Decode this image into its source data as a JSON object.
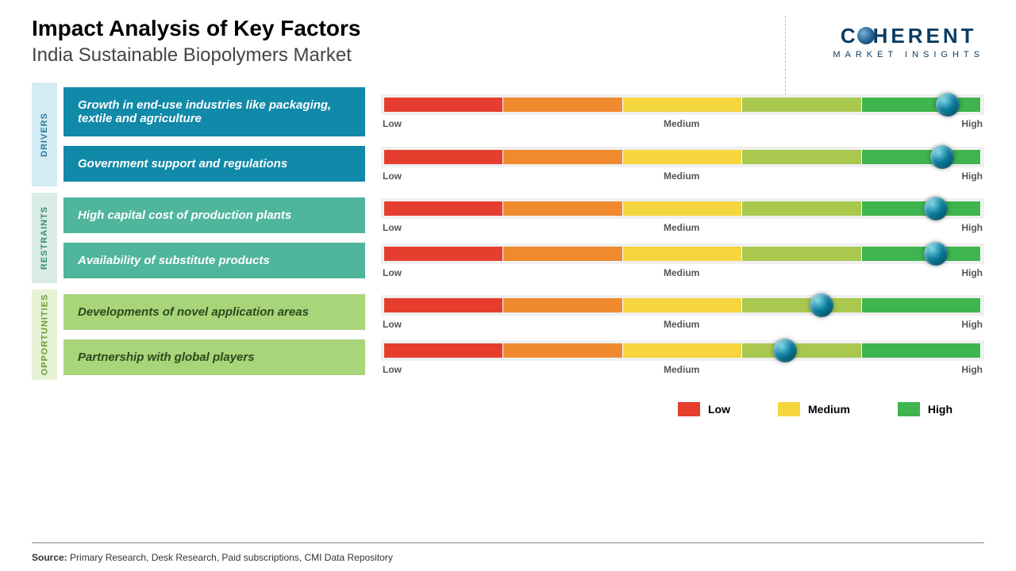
{
  "header": {
    "title": "Impact Analysis of Key Factors",
    "subtitle": "India Sustainable Biopolymers Market"
  },
  "logo": {
    "main_pre": "C",
    "main_post": "HERENT",
    "sub": "MARKET INSIGHTS"
  },
  "scale": {
    "labels": {
      "low": "Low",
      "medium": "Medium",
      "high": "High"
    },
    "colors": {
      "red": "#e53e2e",
      "orange": "#f08a2e",
      "yellow": "#f5d63e",
      "ygreen": "#a8c94e",
      "green": "#3eb54e",
      "marker": "#0a7a9a",
      "bg": "#f0f0f0"
    },
    "segment_widths": [
      20,
      20,
      20,
      20,
      20
    ]
  },
  "categories": [
    {
      "key": "drivers",
      "label": "DRIVERS",
      "label_bg": "#d4ecf4",
      "label_color": "#2a7a9a",
      "factor_bg": "#1189a8",
      "factor_color": "#ffffff",
      "factors": [
        {
          "text": "Growth in end-use industries like packaging, textile and agriculture",
          "marker_pct": 94
        },
        {
          "text": "Government support and regulations",
          "marker_pct": 93
        }
      ]
    },
    {
      "key": "restraints",
      "label": "RESTRAINTS",
      "label_bg": "#d9ede6",
      "label_color": "#3a8a75",
      "factor_bg": "#4fb59c",
      "factor_color": "#ffffff",
      "factors": [
        {
          "text": "High capital cost of production plants",
          "marker_pct": 92
        },
        {
          "text": "Availability of substitute products",
          "marker_pct": 92
        }
      ]
    },
    {
      "key": "opportunities",
      "label": "OPPORTUNITIES",
      "label_bg": "#e6f2d4",
      "label_color": "#6a9a3a",
      "factor_bg": "#a8d47a",
      "factor_color": "#2a4a1a",
      "factors": [
        {
          "text": "Developments of novel application areas",
          "marker_pct": 73
        },
        {
          "text": "Partnership with global players",
          "marker_pct": 67
        }
      ]
    }
  ],
  "legend": [
    {
      "label": "Low",
      "color": "#e53e2e"
    },
    {
      "label": "Medium",
      "color": "#f5d63e"
    },
    {
      "label": "High",
      "color": "#3eb54e"
    }
  ],
  "source": {
    "prefix": "Source:",
    "text": " Primary Research, Desk Research, Paid subscriptions, CMI Data Repository"
  }
}
